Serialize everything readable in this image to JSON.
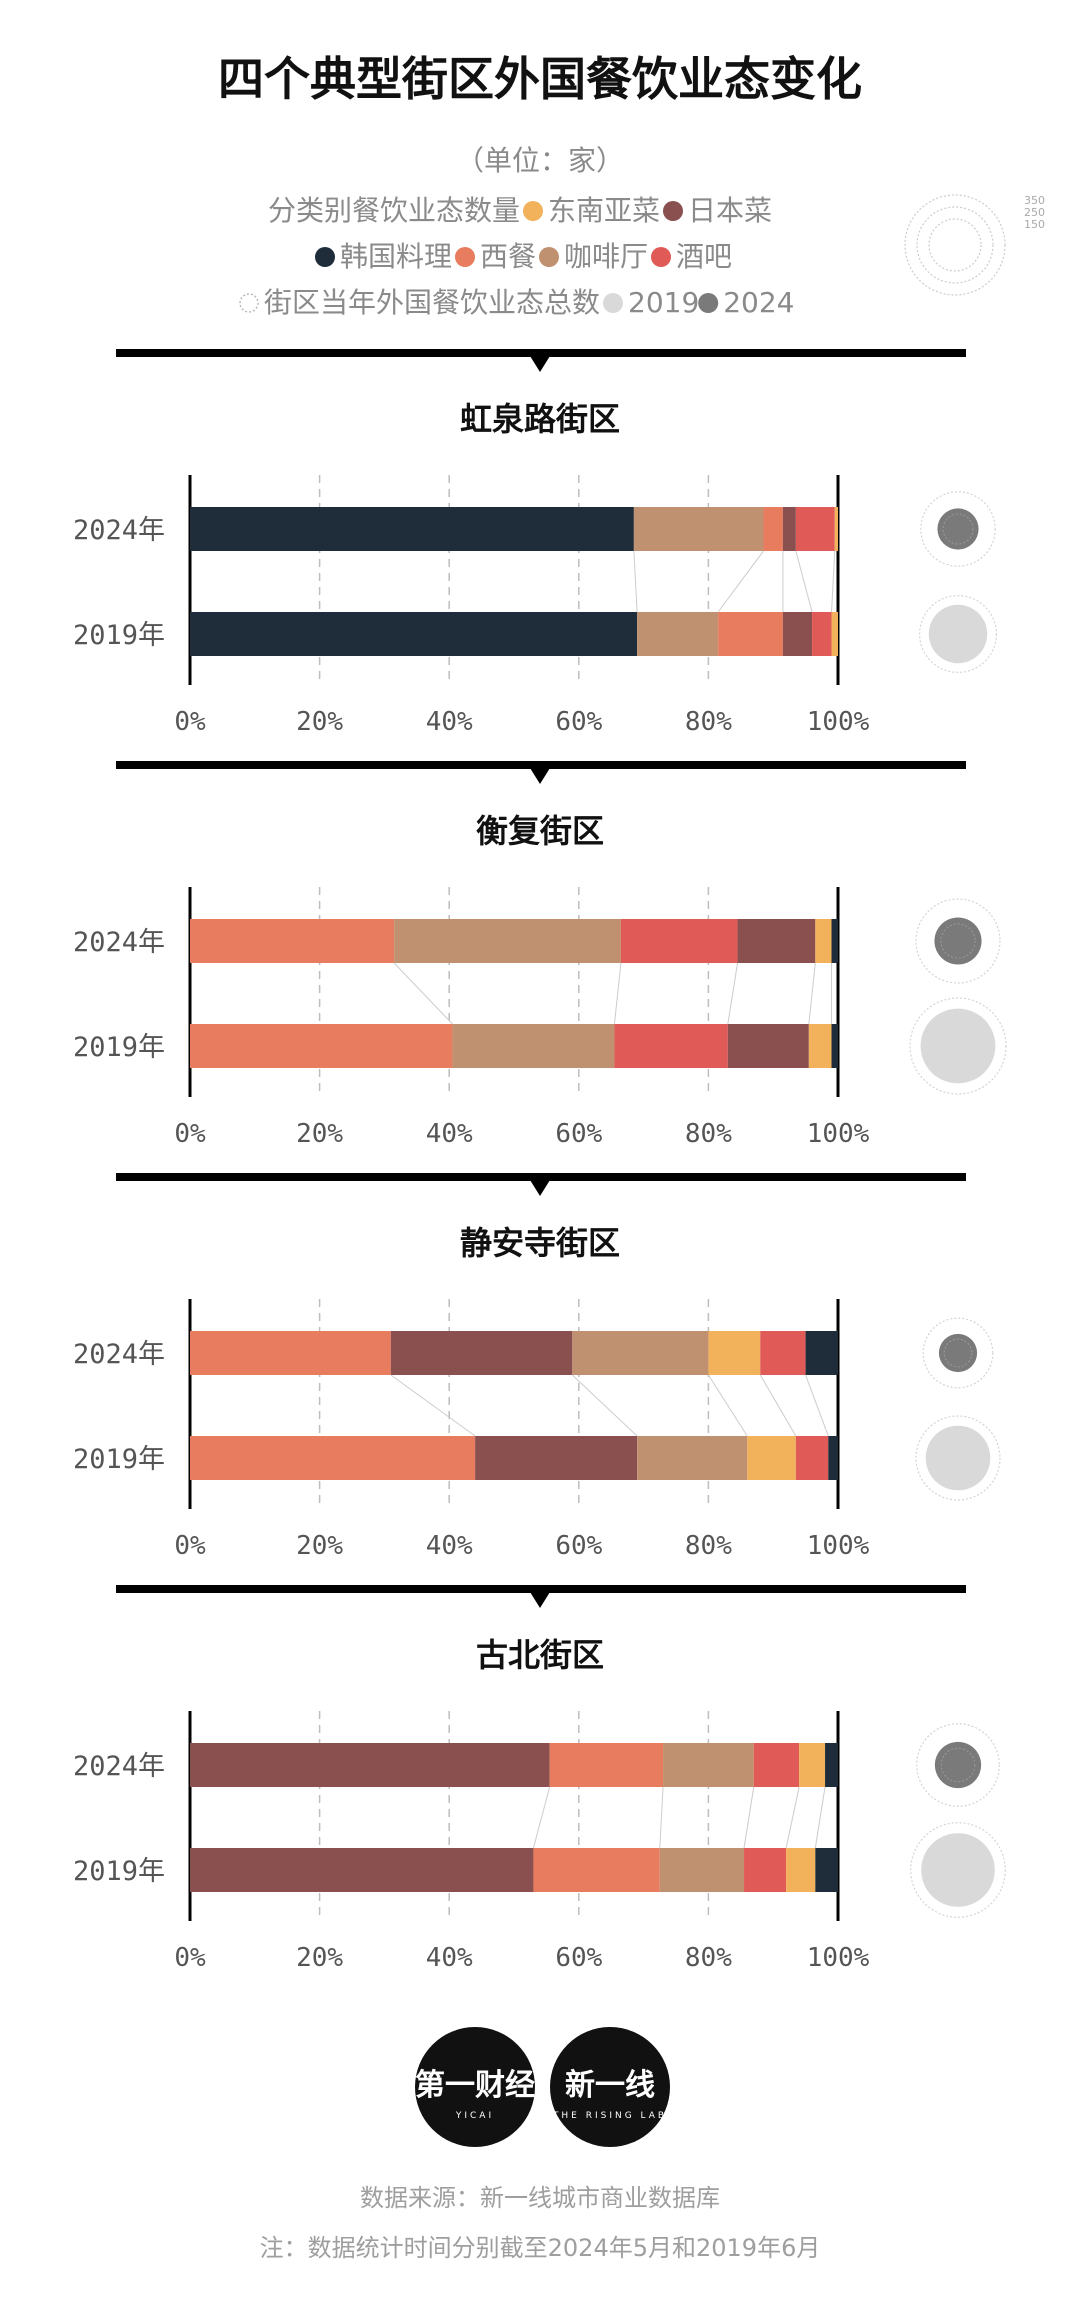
{
  "title": "四个典型街区外国餐饮业态变化",
  "unit": "（单位：家）",
  "legend": {
    "category_label": "分类别餐饮业态数量",
    "total_label": "街区当年外国餐饮业态总数",
    "scale_ticks": [
      "350",
      "250",
      "150"
    ],
    "year_2019": "2019",
    "year_2024": "2024"
  },
  "colors": {
    "东南亚菜": "#f2b25c",
    "日本菜": "#8a4f4f",
    "韩国料理": "#1f2d3b",
    "西餐": "#e87c5f",
    "咖啡厅": "#c09170",
    "酒吧": "#e05a58",
    "circle_2019": "#d9d9d9",
    "circle_2024": "#7a7a7a"
  },
  "chart_data": [
    {
      "type": "bar",
      "stacked": true,
      "orientation": "horizontal",
      "normalized": true,
      "title": "虹泉路街区",
      "categories": [
        "2024年",
        "2019年"
      ],
      "xlim": [
        0,
        100
      ],
      "xticks": [
        "0%",
        "20%",
        "40%",
        "60%",
        "80%",
        "100%"
      ],
      "series": [
        {
          "name": "韩国料理",
          "values": [
            68.5,
            69
          ]
        },
        {
          "name": "咖啡厅",
          "values": [
            20,
            12.5
          ]
        },
        {
          "name": "西餐",
          "values": [
            3,
            10
          ]
        },
        {
          "name": "日本菜",
          "values": [
            2,
            4.5
          ]
        },
        {
          "name": "酒吧",
          "values": [
            6,
            3
          ]
        },
        {
          "name": "东南亚菜",
          "values": [
            0.5,
            1
          ]
        }
      ],
      "totals_relative": [
        0.55,
        0.6
      ]
    },
    {
      "type": "bar",
      "stacked": true,
      "orientation": "horizontal",
      "normalized": true,
      "title": "衡复街区",
      "categories": [
        "2024年",
        "2019年"
      ],
      "xlim": [
        0,
        100
      ],
      "xticks": [
        "0%",
        "20%",
        "40%",
        "60%",
        "80%",
        "100%"
      ],
      "series": [
        {
          "name": "西餐",
          "values": [
            31.5,
            40.5
          ]
        },
        {
          "name": "咖啡厅",
          "values": [
            35,
            25
          ]
        },
        {
          "name": "酒吧",
          "values": [
            18,
            17.5
          ]
        },
        {
          "name": "日本菜",
          "values": [
            12,
            12.5
          ]
        },
        {
          "name": "东南亚菜",
          "values": [
            2.5,
            3.5
          ]
        },
        {
          "name": "韩国料理",
          "values": [
            1,
            1
          ]
        }
      ],
      "totals_relative": [
        0.75,
        1.0
      ]
    },
    {
      "type": "bar",
      "stacked": true,
      "orientation": "horizontal",
      "normalized": true,
      "title": "静安寺街区",
      "categories": [
        "2024年",
        "2019年"
      ],
      "xlim": [
        0,
        100
      ],
      "xticks": [
        "0%",
        "20%",
        "40%",
        "60%",
        "80%",
        "100%"
      ],
      "series": [
        {
          "name": "西餐",
          "values": [
            31,
            44
          ]
        },
        {
          "name": "日本菜",
          "values": [
            28,
            25
          ]
        },
        {
          "name": "咖啡厅",
          "values": [
            21,
            17
          ]
        },
        {
          "name": "东南亚菜",
          "values": [
            8,
            7.5
          ]
        },
        {
          "name": "酒吧",
          "values": [
            7,
            5
          ]
        },
        {
          "name": "韩国料理",
          "values": [
            5,
            1.5
          ]
        }
      ],
      "totals_relative": [
        0.45,
        0.75
      ]
    },
    {
      "type": "bar",
      "stacked": true,
      "orientation": "horizontal",
      "normalized": true,
      "title": "古北街区",
      "categories": [
        "2024年",
        "2019年"
      ],
      "xlim": [
        0,
        100
      ],
      "xticks": [
        "0%",
        "20%",
        "40%",
        "60%",
        "80%",
        "100%"
      ],
      "series": [
        {
          "name": "日本菜",
          "values": [
            55.5,
            53
          ]
        },
        {
          "name": "西餐",
          "values": [
            17.5,
            19.5
          ]
        },
        {
          "name": "咖啡厅",
          "values": [
            14,
            13
          ]
        },
        {
          "name": "酒吧",
          "values": [
            7,
            6.5
          ]
        },
        {
          "name": "东南亚菜",
          "values": [
            4,
            4.5
          ]
        },
        {
          "name": "韩国料理",
          "values": [
            2,
            3.5
          ]
        }
      ],
      "totals_relative": [
        0.72,
        0.97
      ]
    }
  ],
  "logos": {
    "left": "第一财经",
    "left_sub": "YICAI",
    "right": "新一线",
    "right_sub": "THE RISING LAB"
  },
  "footer": {
    "source": "数据来源：新一线城市商业数据库",
    "note": "注：数据统计时间分别截至2024年5月和2019年6月"
  }
}
